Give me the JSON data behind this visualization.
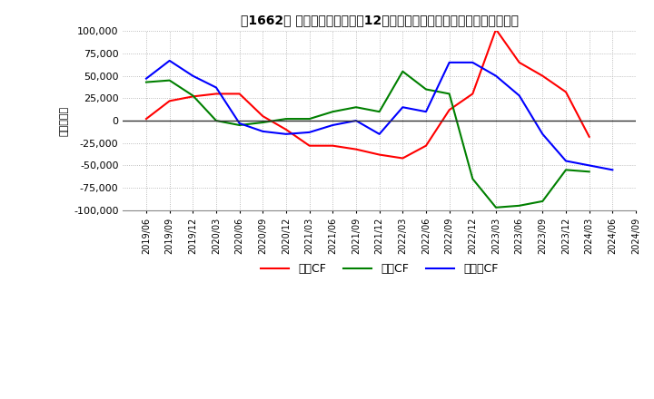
{
  "title": "　1662、 キャッシュフローの12か月移動合計の対前年同期増減額の推移",
  "ylabel": "（百万円）",
  "ylim": [
    -100000,
    100000
  ],
  "yticks": [
    -100000,
    -75000,
    -50000,
    -25000,
    0,
    25000,
    50000,
    75000,
    100000
  ],
  "dates": [
    "2019/06",
    "2019/09",
    "2019/12",
    "2020/03",
    "2020/06",
    "2020/09",
    "2020/12",
    "2021/03",
    "2021/06",
    "2021/09",
    "2021/12",
    "2022/03",
    "2022/06",
    "2022/09",
    "2022/12",
    "2023/03",
    "2023/06",
    "2023/09",
    "2023/12",
    "2024/03",
    "2024/06",
    "2024/09"
  ],
  "operating_cf": [
    2000,
    22000,
    27000,
    30000,
    30000,
    5000,
    -10000,
    -28000,
    -28000,
    -32000,
    -38000,
    -42000,
    -28000,
    12000,
    30000,
    102000,
    65000,
    50000,
    32000,
    -18000,
    null,
    null
  ],
  "investing_cf": [
    43000,
    45000,
    28000,
    0,
    -5000,
    -2000,
    2000,
    2000,
    10000,
    15000,
    10000,
    55000,
    35000,
    30000,
    -65000,
    -97000,
    -95000,
    -90000,
    -55000,
    -57000,
    null,
    null
  ],
  "free_cf": [
    47000,
    67000,
    50000,
    37000,
    -3000,
    -12000,
    -15000,
    -13000,
    -5000,
    0,
    -15000,
    15000,
    10000,
    65000,
    65000,
    50000,
    28000,
    -15000,
    -45000,
    -50000,
    -55000,
    null
  ],
  "operating_color": "#ff0000",
  "investing_color": "#008000",
  "free_cf_color": "#0000ff",
  "background_color": "#ffffff",
  "grid_color": "#aaaaaa",
  "legend_labels": [
    "営業CF",
    "投資CF",
    "フリーCF"
  ]
}
